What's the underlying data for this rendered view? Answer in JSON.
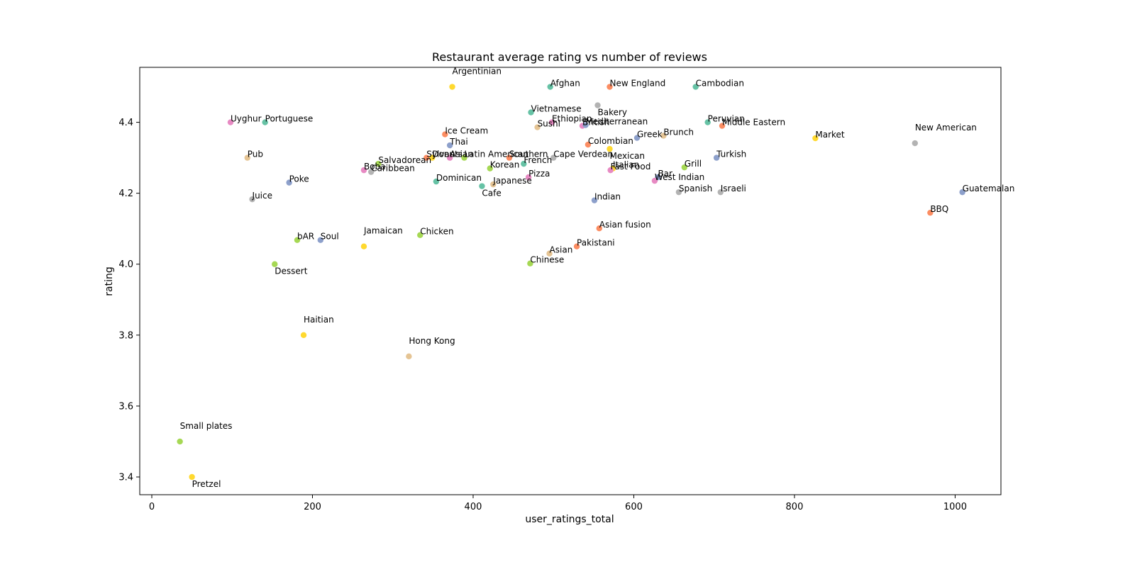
{
  "chart_data": {
    "type": "scatter",
    "title": "Restaurant average rating vs number of reviews",
    "xlabel": "user_ratings_total",
    "ylabel": "rating",
    "xlim": [
      -15,
      1057
    ],
    "ylim": [
      3.35,
      4.555
    ],
    "xticks": [
      0,
      200,
      400,
      600,
      800,
      1000
    ],
    "yticks": [
      3.4,
      3.6,
      3.8,
      4.0,
      4.2,
      4.4
    ],
    "ytick_labels": [
      "3.4",
      "3.6",
      "3.8",
      "4.0",
      "4.2",
      "4.4"
    ],
    "grid": false,
    "legend": "none",
    "palette": [
      "#66c2a5",
      "#fc8d62",
      "#8da0cb",
      "#e78ac3",
      "#a6d854",
      "#ffd92f",
      "#e5c494",
      "#b3b3b3"
    ],
    "points": [
      {
        "label": "Argentinian",
        "x": 374,
        "y": 4.5,
        "color": "#ffd92f"
      },
      {
        "label": "Afghan",
        "x": 496,
        "y": 4.5,
        "color": "#66c2a5"
      },
      {
        "label": "New England",
        "x": 570,
        "y": 4.5,
        "color": "#fc8d62"
      },
      {
        "label": "Bakery",
        "x": 555,
        "y": 4.448,
        "color": "#b3b3b3"
      },
      {
        "label": "Cambodian",
        "x": 677,
        "y": 4.5,
        "color": "#66c2a5"
      },
      {
        "label": "Vietnamese",
        "x": 472,
        "y": 4.428,
        "color": "#66c2a5"
      },
      {
        "label": "Sushi",
        "x": 480,
        "y": 4.386,
        "color": "#e5c494"
      },
      {
        "label": "Ethiopian",
        "x": 498,
        "y": 4.4,
        "color": "#e78ac3"
      },
      {
        "label": "British",
        "x": 536,
        "y": 4.39,
        "color": "#e78ac3"
      },
      {
        "label": "Mediterranean",
        "x": 540,
        "y": 4.392,
        "color": "#8da0cb"
      },
      {
        "label": "Peruvian",
        "x": 692,
        "y": 4.4,
        "color": "#66c2a5"
      },
      {
        "label": "Middle Eastern",
        "x": 710,
        "y": 4.39,
        "color": "#fc8d62"
      },
      {
        "label": "Uyghur",
        "x": 98,
        "y": 4.4,
        "color": "#e78ac3"
      },
      {
        "label": "Portuguese",
        "x": 141,
        "y": 4.4,
        "color": "#66c2a5"
      },
      {
        "label": "Ice Cream",
        "x": 365,
        "y": 4.366,
        "color": "#fc8d62"
      },
      {
        "label": "Market",
        "x": 826,
        "y": 4.355,
        "color": "#ffd92f"
      },
      {
        "label": "New American",
        "x": 950,
        "y": 4.341,
        "color": "#b3b3b3"
      },
      {
        "label": "Brunch",
        "x": 637,
        "y": 4.362,
        "color": "#e5c494"
      },
      {
        "label": "Greek",
        "x": 604,
        "y": 4.356,
        "color": "#8da0cb"
      },
      {
        "label": "Colombian",
        "x": 543,
        "y": 4.337,
        "color": "#fc8d62"
      },
      {
        "label": "Mexican",
        "x": 570,
        "y": 4.325,
        "color": "#ffd92f"
      },
      {
        "label": "Thai",
        "x": 371,
        "y": 4.335,
        "color": "#8da0cb"
      },
      {
        "label": "Pub",
        "x": 119,
        "y": 4.3,
        "color": "#e5c494"
      },
      {
        "label": "Sylvan",
        "x": 342,
        "y": 4.3,
        "color": "#fc8d62"
      },
      {
        "label": "Donuts",
        "x": 349,
        "y": 4.3,
        "color": "#ffd92f"
      },
      {
        "label": "Asian",
        "x": 371,
        "y": 4.3,
        "color": "#e78ac3"
      },
      {
        "label": "Latin American",
        "x": 389,
        "y": 4.3,
        "color": "#a6d854"
      },
      {
        "label": "Southern",
        "x": 445,
        "y": 4.3,
        "color": "#fc8d62"
      },
      {
        "label": "Cape Verdean",
        "x": 500,
        "y": 4.3,
        "color": "#b3b3b3"
      },
      {
        "label": "Turkish",
        "x": 703,
        "y": 4.3,
        "color": "#8da0cb"
      },
      {
        "label": "Salvadorean",
        "x": 282,
        "y": 4.283,
        "color": "#a6d854"
      },
      {
        "label": "French",
        "x": 463,
        "y": 4.283,
        "color": "#66c2a5"
      },
      {
        "label": "Boba",
        "x": 264,
        "y": 4.265,
        "color": "#e78ac3"
      },
      {
        "label": "Caribbean",
        "x": 273,
        "y": 4.26,
        "color": "#b3b3b3"
      },
      {
        "label": "Korean",
        "x": 421,
        "y": 4.27,
        "color": "#a6d854"
      },
      {
        "label": "Grill",
        "x": 663,
        "y": 4.273,
        "color": "#a6d854"
      },
      {
        "label": "Italian",
        "x": 574,
        "y": 4.27,
        "color": "#ffd92f"
      },
      {
        "label": "Fast Food",
        "x": 571,
        "y": 4.265,
        "color": "#e78ac3"
      },
      {
        "label": "Bar",
        "x": 630,
        "y": 4.245,
        "color": "#8da0cb"
      },
      {
        "label": "Pizza",
        "x": 469,
        "y": 4.245,
        "color": "#e78ac3"
      },
      {
        "label": "West Indian",
        "x": 626,
        "y": 4.235,
        "color": "#e78ac3"
      },
      {
        "label": "Poke",
        "x": 171,
        "y": 4.23,
        "color": "#8da0cb"
      },
      {
        "label": "Dominican",
        "x": 354,
        "y": 4.233,
        "color": "#66c2a5"
      },
      {
        "label": "Japanese",
        "x": 425,
        "y": 4.225,
        "color": "#e5c494"
      },
      {
        "label": "Cafe",
        "x": 411,
        "y": 4.22,
        "color": "#66c2a5"
      },
      {
        "label": "Spanish",
        "x": 656,
        "y": 4.203,
        "color": "#b3b3b3"
      },
      {
        "label": "Israeli",
        "x": 708,
        "y": 4.203,
        "color": "#b3b3b3"
      },
      {
        "label": "Guatemalan",
        "x": 1009,
        "y": 4.203,
        "color": "#8da0cb"
      },
      {
        "label": "Juice",
        "x": 125,
        "y": 4.183,
        "color": "#b3b3b3"
      },
      {
        "label": "Indian",
        "x": 551,
        "y": 4.18,
        "color": "#8da0cb"
      },
      {
        "label": "BBQ",
        "x": 969,
        "y": 4.145,
        "color": "#fc8d62"
      },
      {
        "label": "Asian fusion",
        "x": 557,
        "y": 4.101,
        "color": "#fc8d62"
      },
      {
        "label": "Chicken",
        "x": 334,
        "y": 4.082,
        "color": "#a6d854"
      },
      {
        "label": "bAR",
        "x": 181,
        "y": 4.068,
        "color": "#a6d854"
      },
      {
        "label": "Soul",
        "x": 210,
        "y": 4.068,
        "color": "#8da0cb"
      },
      {
        "label": "Jamaican",
        "x": 264,
        "y": 4.05,
        "color": "#ffd92f"
      },
      {
        "label": "Pakistani",
        "x": 529,
        "y": 4.05,
        "color": "#fc8d62"
      },
      {
        "label": "Chinese",
        "x": 471,
        "y": 4.002,
        "color": "#a6d854"
      },
      {
        "label": "Asian",
        "x": 495,
        "y": 4.03,
        "color": "#e5c494"
      },
      {
        "label": "Dessert",
        "x": 153,
        "y": 4.0,
        "color": "#a6d854"
      },
      {
        "label": "Haitian",
        "x": 189,
        "y": 3.8,
        "color": "#ffd92f"
      },
      {
        "label": "Hong Kong",
        "x": 320,
        "y": 3.74,
        "color": "#e5c494"
      },
      {
        "label": "Small plates",
        "x": 35,
        "y": 3.5,
        "color": "#a6d854"
      },
      {
        "label": "Pretzel",
        "x": 50,
        "y": 3.4,
        "color": "#ffd92f"
      }
    ]
  }
}
